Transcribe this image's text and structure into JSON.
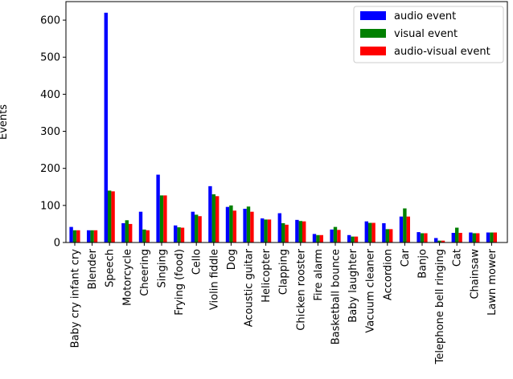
{
  "chart_data": {
    "type": "bar",
    "title": "",
    "xlabel": "",
    "ylabel": "Events",
    "ylim": [
      0,
      650
    ],
    "yticks": [
      0,
      100,
      200,
      300,
      400,
      500,
      600
    ],
    "grid": false,
    "legend_position": "top-right",
    "categories": [
      "Baby cry infant cry",
      "Blender",
      "Speech",
      "Motorcycle",
      "Cheering",
      "Singing",
      "Frying (food)",
      "Cello",
      "Violin fiddle",
      "Dog",
      "Acoustic guitar",
      "Helicopter",
      "Clapping",
      "Chicken rooster",
      "Fire alarm",
      "Basketball bounce",
      "Baby laughter",
      "Vacuum cleaner",
      "Accordion",
      "Car",
      "Banjo",
      "Telephone bell ringing",
      "Cat",
      "Chainsaw",
      "Lawn mower"
    ],
    "series": [
      {
        "name": "audio event",
        "color": "#0000ff",
        "values": [
          42,
          33,
          620,
          52,
          83,
          183,
          46,
          83,
          152,
          96,
          91,
          65,
          79,
          61,
          23,
          35,
          20,
          57,
          52,
          70,
          28,
          12,
          26,
          27,
          27
        ]
      },
      {
        "name": "visual event",
        "color": "#008000",
        "values": [
          33,
          33,
          140,
          60,
          35,
          127,
          41,
          75,
          130,
          100,
          97,
          62,
          52,
          58,
          20,
          42,
          16,
          53,
          36,
          92,
          25,
          5,
          40,
          25,
          27
        ]
      },
      {
        "name": "audio-visual event",
        "color": "#ff0000",
        "values": [
          33,
          33,
          138,
          50,
          33,
          127,
          40,
          71,
          125,
          86,
          83,
          62,
          48,
          57,
          20,
          34,
          16,
          53,
          36,
          70,
          25,
          5,
          26,
          25,
          27
        ]
      }
    ]
  }
}
